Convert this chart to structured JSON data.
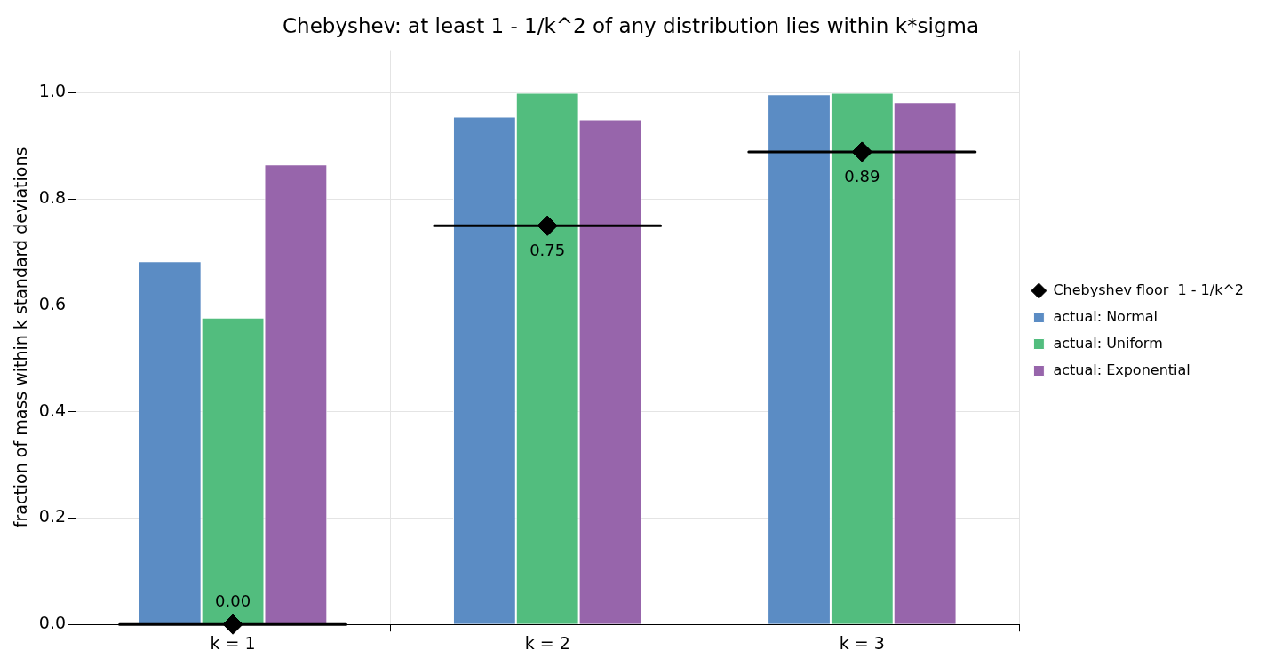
{
  "chart_data": {
    "type": "bar",
    "title": "Chebyshev: at least 1 - 1/k^2 of any distribution lies within k*sigma",
    "ylabel": "fraction of mass within k standard deviations",
    "categories": [
      "k = 1",
      "k = 2",
      "k = 3"
    ],
    "series": [
      {
        "name": "actual: Normal",
        "color": "#5b8cc4",
        "values": [
          0.683,
          0.955,
          0.997
        ]
      },
      {
        "name": "actual: Uniform",
        "color": "#52bd7e",
        "values": [
          0.577,
          1.0,
          1.0
        ]
      },
      {
        "name": "actual: Exponential",
        "color": "#9765ab",
        "values": [
          0.865,
          0.95,
          0.982
        ]
      },
      {
        "name": "Chebyshev floor  1 - 1/k^2",
        "type": "scatter",
        "marker": "diamond",
        "color": "#000000",
        "x": [
          "k = 1",
          "k = 2",
          "k = 3"
        ],
        "values": [
          0,
          0.75,
          0.889
        ],
        "value_labels": [
          "0.00",
          "0.75",
          "0.89"
        ]
      }
    ],
    "ylim": [
      0,
      1.08
    ],
    "yticks": [
      {
        "value": 0,
        "label": "0.0"
      },
      {
        "value": 0.2,
        "label": "0.2"
      },
      {
        "value": 0.4,
        "label": "0.4"
      },
      {
        "value": 0.6,
        "label": "0.6"
      },
      {
        "value": 0.8,
        "label": "0.8"
      },
      {
        "value": 1,
        "label": "1.0"
      }
    ],
    "ref_lines": [
      {
        "axis": "y",
        "value": 0,
        "color": "#000000"
      },
      {
        "axis": "y",
        "value": 0.75,
        "color": "#000000"
      },
      {
        "axis": "y",
        "value": 0.889,
        "color": "#000000"
      }
    ],
    "grid": true,
    "legend": "right"
  }
}
